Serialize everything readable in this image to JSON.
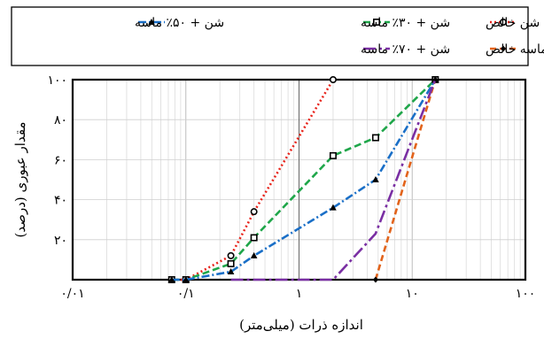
{
  "chart_data": {
    "type": "line",
    "xscale": "log",
    "xlim": [
      0.01,
      100
    ],
    "ylim": [
      0,
      100
    ],
    "xlabel": "اندازه ذرات (میلی‌متر)",
    "ylabel": "مقدار عبوری (درصد)",
    "xticks": [
      {
        "value": 0.01,
        "label": "۰/۰۱"
      },
      {
        "value": 0.1,
        "label": "۰/۱"
      },
      {
        "value": 1,
        "label": "۱"
      },
      {
        "value": 10,
        "label": "۱۰"
      },
      {
        "value": 100,
        "label": "۱۰۰"
      }
    ],
    "yticks": [
      {
        "value": 0,
        "label": ""
      },
      {
        "value": 20,
        "label": "۲۰"
      },
      {
        "value": 40,
        "label": "۴۰"
      },
      {
        "value": 60,
        "label": "۶۰"
      },
      {
        "value": 80,
        "label": "۸۰"
      },
      {
        "value": 100,
        "label": "۱۰۰"
      }
    ],
    "grid": true,
    "legend_position": "top",
    "series": [
      {
        "name": "شن خالص",
        "color": "#e8231a",
        "dash": "2,3",
        "marker": "circle",
        "x": [
          0.075,
          0.1,
          0.25,
          0.4,
          2.0
        ],
        "y": [
          0,
          0,
          12,
          34,
          100
        ]
      },
      {
        "name": "شن + ۳۰٪ ماسه",
        "color": "#1fa64a",
        "dash": "8,4",
        "marker": "square",
        "x": [
          0.075,
          0.1,
          0.25,
          0.4,
          2.0,
          4.75,
          16
        ],
        "y": [
          0,
          0,
          8,
          21,
          62,
          71,
          100
        ]
      },
      {
        "name": "شن + ۵۰٪ ماسه",
        "color": "#1a6fc7",
        "dash": "9,3,2,3",
        "marker": "triangle",
        "x": [
          0.075,
          0.1,
          0.25,
          0.4,
          2.0,
          4.75,
          16
        ],
        "y": [
          0,
          0,
          4,
          12,
          36,
          50,
          100
        ]
      },
      {
        "name": "ماسه خالص",
        "color": "#e2631b",
        "dash": "7,4",
        "marker": "diamond",
        "x": [
          4.75,
          16
        ],
        "y": [
          0,
          100
        ]
      },
      {
        "name": "شن + ۷۰٪ ماسه",
        "color": "#7a2fa3",
        "dash": "14,4,3,4",
        "marker": "none",
        "x": [
          0.25,
          2.0,
          4.75,
          16
        ],
        "y": [
          0,
          0,
          23,
          100
        ]
      }
    ]
  }
}
